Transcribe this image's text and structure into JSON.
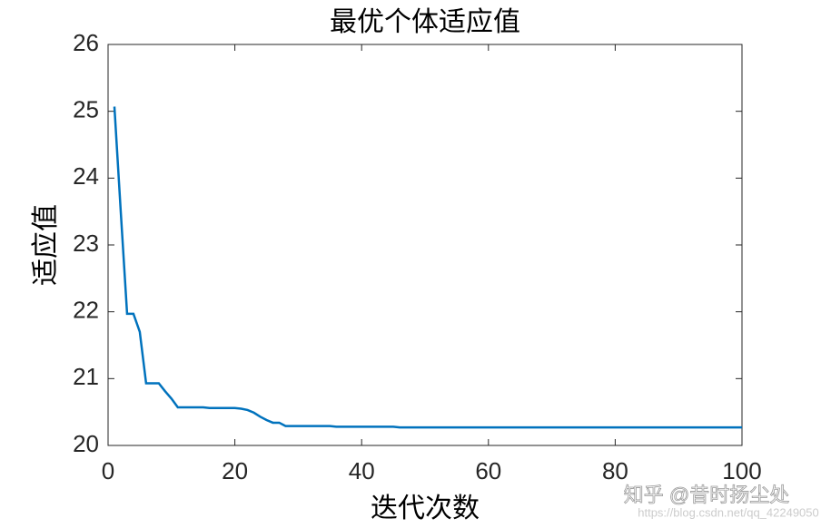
{
  "chart_data": {
    "type": "line",
    "title": "最优个体适应值",
    "x_label": "迭代次数",
    "y_label": "适应值",
    "x": [
      1,
      2,
      3,
      4,
      5,
      6,
      7,
      8,
      9,
      10,
      11,
      12,
      13,
      14,
      15,
      16,
      17,
      18,
      19,
      20,
      21,
      22,
      23,
      24,
      25,
      26,
      27,
      28,
      29,
      30,
      31,
      32,
      33,
      34,
      35,
      36,
      37,
      38,
      39,
      40,
      41,
      42,
      43,
      44,
      45,
      46,
      47,
      48,
      49,
      50,
      51,
      52,
      53,
      54,
      55,
      56,
      57,
      58,
      59,
      60,
      61,
      62,
      63,
      64,
      65,
      66,
      67,
      68,
      69,
      70,
      71,
      72,
      73,
      74,
      75,
      76,
      77,
      78,
      79,
      80,
      81,
      82,
      83,
      84,
      85,
      86,
      87,
      88,
      89,
      90,
      91,
      92,
      93,
      94,
      95,
      96,
      97,
      98,
      99,
      100
    ],
    "series": [
      {
        "color": "#0072bd",
        "values": [
          25.07,
          23.5,
          21.97,
          21.97,
          21.7,
          20.93,
          20.93,
          20.93,
          20.81,
          20.7,
          20.57,
          20.57,
          20.57,
          20.57,
          20.57,
          20.56,
          20.56,
          20.56,
          20.56,
          20.56,
          20.55,
          20.53,
          20.49,
          20.43,
          20.38,
          20.34,
          20.34,
          20.29,
          20.29,
          20.29,
          20.29,
          20.29,
          20.29,
          20.29,
          20.29,
          20.28,
          20.28,
          20.28,
          20.28,
          20.28,
          20.28,
          20.28,
          20.28,
          20.28,
          20.28,
          20.27,
          20.27,
          20.27,
          20.27,
          20.27,
          20.27,
          20.27,
          20.27,
          20.27,
          20.27,
          20.27,
          20.27,
          20.27,
          20.27,
          20.27,
          20.27,
          20.27,
          20.27,
          20.27,
          20.27,
          20.27,
          20.27,
          20.27,
          20.27,
          20.27,
          20.27,
          20.27,
          20.27,
          20.27,
          20.27,
          20.27,
          20.27,
          20.27,
          20.27,
          20.27,
          20.27,
          20.27,
          20.27,
          20.27,
          20.27,
          20.27,
          20.27,
          20.27,
          20.27,
          20.27,
          20.27,
          20.27,
          20.27,
          20.27,
          20.27,
          20.27,
          20.27,
          20.27,
          20.27,
          20.27
        ]
      }
    ],
    "xlim": [
      0,
      100
    ],
    "xticks": [
      0,
      20,
      40,
      60,
      80,
      100
    ],
    "ylim": [
      20,
      26
    ],
    "yticks": [
      20,
      21,
      22,
      23,
      24,
      25,
      26
    ],
    "watermarks": [
      "知乎 @昔时扬尘处",
      "https://blog.csdn.net/qq_42249050"
    ]
  }
}
